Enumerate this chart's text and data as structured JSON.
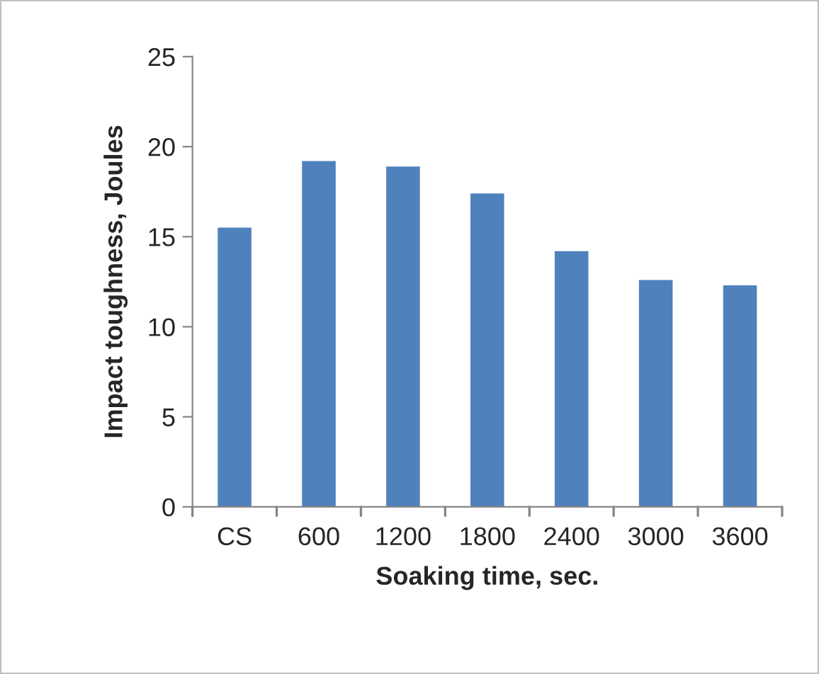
{
  "chart_data": {
    "type": "bar",
    "xlabel": "Soaking time, sec.",
    "ylabel": "Impact toughness, Joules",
    "categories": [
      "CS",
      "600",
      "1200",
      "1800",
      "2400",
      "3000",
      "3600"
    ],
    "values": [
      15.5,
      19.2,
      18.9,
      17.4,
      14.2,
      12.6,
      12.3
    ],
    "color": "#4f81bd",
    "ylim": [
      0,
      25
    ],
    "yticks": [
      0,
      5,
      10,
      15,
      20,
      25
    ],
    "grid": false,
    "legend": false
  }
}
